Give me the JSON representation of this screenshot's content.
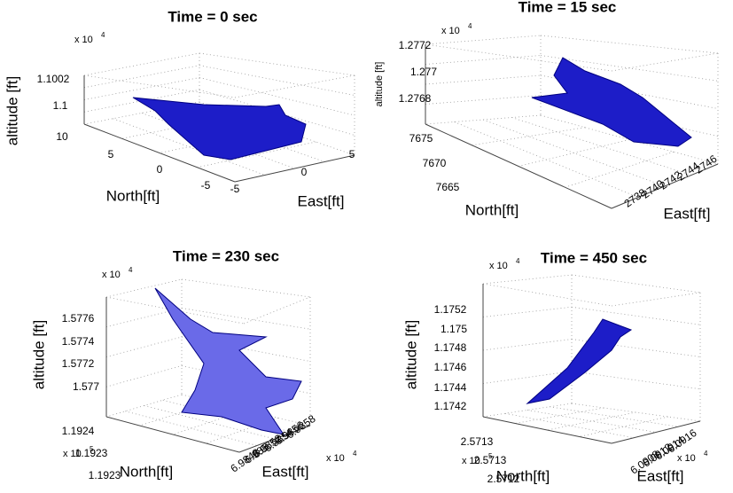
{
  "panels": [
    {
      "title": "Time = 0 sec",
      "exponent": "x 10",
      "exponent_power": "4",
      "zlabel": "altitude [ft]",
      "xlabel": "North[ft]",
      "ylabel": "East[ft]",
      "zticks": [
        "1.1002",
        "1.1"
      ],
      "xticks": [
        "10",
        "5",
        "0",
        "-5"
      ],
      "yticks": [
        "-5",
        "0",
        "5"
      ]
    },
    {
      "title": "Time = 15 sec",
      "exponent": "x 10",
      "exponent_power": "4",
      "zlabel": "altitude [ft]",
      "xlabel": "North[ft]",
      "ylabel": "East[ft]",
      "zticks": [
        "1.2772",
        "1.277",
        "1.2768"
      ],
      "xticks": [
        "7675",
        "7670",
        "7665"
      ],
      "yticks": [
        "2738",
        "2740",
        "2742",
        "2744",
        "2746"
      ]
    },
    {
      "title": "Time = 230 sec",
      "exponent": "x 10",
      "exponent_power": "4",
      "zlabel": "altitude [ft]",
      "xlabel": "North[ft]",
      "ylabel": "East[ft]",
      "zticks": [
        "1.5776",
        "1.5774",
        "1.5772",
        "1.577"
      ],
      "xticks": [
        "1.1924",
        "1.1923",
        "1.1923"
      ],
      "xexponent": "x 10",
      "xexponent_power": "5",
      "yticks": [
        "6.9848",
        "6.985",
        "6.9852",
        "6.9854",
        "6.9856",
        "6.9858"
      ],
      "yexponent": "x 10",
      "yexponent_power": "4"
    },
    {
      "title": "Time = 450 sec",
      "exponent": "x 10",
      "exponent_power": "4",
      "zlabel": "altitude [ft]",
      "xlabel": "North[ft]",
      "ylabel": "East[ft]",
      "zticks": [
        "1.1752",
        "1.175",
        "1.1748",
        "1.1746",
        "1.1744",
        "1.1742"
      ],
      "xticks": [
        "2.5713",
        "2.5713",
        "2.5712"
      ],
      "xexponent": "x 10",
      "xexponent_power": "5",
      "yticks": [
        "6.0908",
        "6.0912",
        "6.0914",
        "6.0916"
      ],
      "yexponent": "x 10",
      "yexponent_power": "4"
    }
  ]
}
